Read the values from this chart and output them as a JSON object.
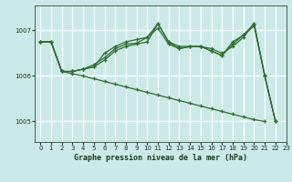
{
  "title": "Graphe pression niveau de la mer (hPa)",
  "bg_color": "#cce9e9",
  "grid_color": "#ffffff",
  "line_color": "#2d6e2d",
  "xlim": [
    -0.5,
    23
  ],
  "ylim": [
    1004.55,
    1007.55
  ],
  "yticks": [
    1005,
    1006,
    1007
  ],
  "xticks": [
    0,
    1,
    2,
    3,
    4,
    5,
    6,
    7,
    8,
    9,
    10,
    11,
    12,
    13,
    14,
    15,
    16,
    17,
    18,
    19,
    20,
    21,
    22,
    23
  ],
  "y1": [
    1006.75,
    1006.75,
    1006.1,
    1006.1,
    1006.15,
    1006.2,
    1006.5,
    1006.65,
    1006.75,
    1006.8,
    1006.85,
    1007.15,
    1006.75,
    1006.6,
    1006.65,
    1006.65,
    1006.55,
    1006.45,
    1006.75,
    1006.9,
    1007.15,
    1006.0,
    1005.0,
    null
  ],
  "y2": [
    1006.75,
    1006.75,
    1006.1,
    1006.1,
    1006.15,
    1006.25,
    1006.4,
    1006.6,
    1006.7,
    1006.72,
    1006.85,
    1007.05,
    1006.7,
    1006.6,
    1006.65,
    1006.65,
    1006.55,
    1006.45,
    1006.7,
    1006.9,
    1007.1,
    1006.0,
    1005.0,
    null
  ],
  "y3": [
    1006.75,
    1006.75,
    1006.1,
    1006.1,
    1006.15,
    1006.2,
    1006.35,
    1006.55,
    1006.65,
    1006.7,
    1006.75,
    1007.15,
    1006.75,
    1006.65,
    1006.65,
    1006.65,
    1006.6,
    1006.5,
    1006.65,
    1006.85,
    1007.15,
    1006.0,
    1005.0,
    null
  ],
  "y4": [
    1006.75,
    1006.75,
    1006.1,
    1006.05,
    1006.0,
    1005.94,
    1005.88,
    1005.82,
    1005.76,
    1005.7,
    1005.64,
    1005.58,
    1005.52,
    1005.46,
    1005.4,
    1005.34,
    1005.28,
    1005.22,
    1005.16,
    1005.1,
    1005.04,
    1005.0,
    null,
    null
  ]
}
